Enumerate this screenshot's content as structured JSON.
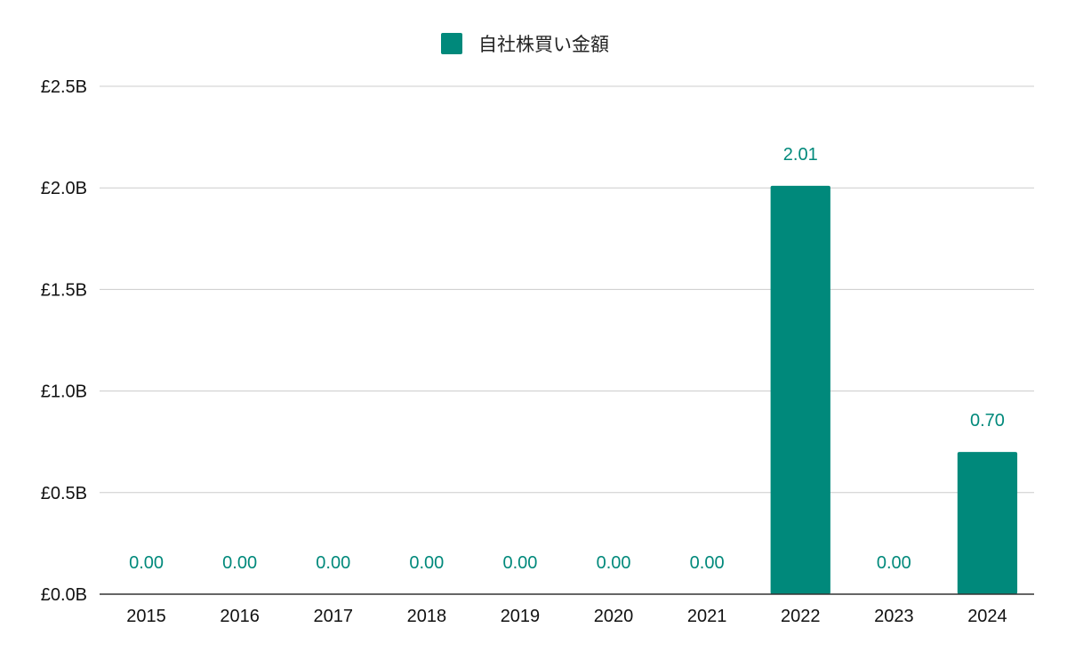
{
  "colors": {
    "series": "#00897b",
    "grid": "#cccccc",
    "axis": "#333333"
  },
  "chart_data": {
    "type": "bar",
    "title": "",
    "xlabel": "",
    "ylabel": "",
    "categories": [
      "2015",
      "2016",
      "2017",
      "2018",
      "2019",
      "2020",
      "2021",
      "2022",
      "2023",
      "2024"
    ],
    "series": [
      {
        "name": "自社株買い金額",
        "values": [
          0,
          0,
          0,
          0,
          0,
          0,
          0,
          2.01,
          0,
          0.7
        ],
        "data_labels": [
          "0.00",
          "0.00",
          "0.00",
          "0.00",
          "0.00",
          "0.00",
          "0.00",
          "2.01",
          "0.00",
          "0.70"
        ]
      }
    ],
    "ylim": [
      0,
      2.5
    ],
    "y_ticks": [
      0,
      0.5,
      1.0,
      1.5,
      2.0,
      2.5
    ],
    "y_tick_labels": [
      "£0.0B",
      "£0.5B",
      "£1.0B",
      "£1.5B",
      "£2.0B",
      "£2.5B"
    ],
    "grid": true,
    "legend_position": "top-center"
  }
}
